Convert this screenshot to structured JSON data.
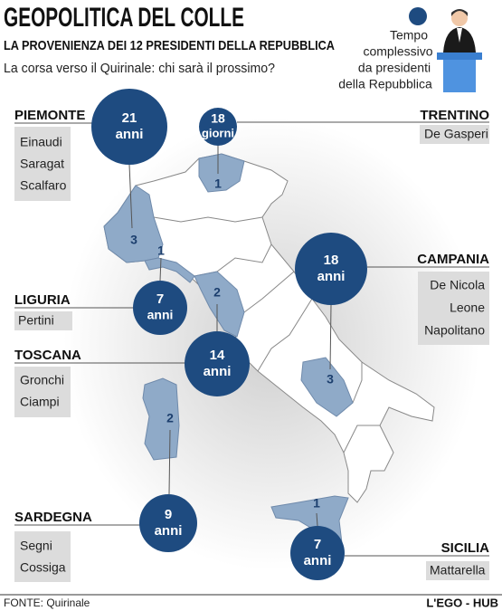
{
  "header": {
    "title": "GEOPOLITICA DEL COLLE",
    "subtitle": "LA PROVENIENZA DEI 12 PRESIDENTI DELLA REPUBBLICA",
    "question": "La corsa verso il Quirinale: chi sarà il prossimo?"
  },
  "legend": {
    "lines": [
      "Tempo",
      "complessivo",
      "da presidenti",
      "della Repubblica"
    ]
  },
  "regions": [
    {
      "name": "PIEMONTE",
      "presidents": [
        "Einaudi",
        "Saragat",
        "Scalfaro"
      ],
      "time": 21,
      "unit": "anni",
      "count": 3
    },
    {
      "name": "TRENTINO",
      "presidents": [
        "De Gasperi"
      ],
      "time": 18,
      "unit": "giorni",
      "count": 1
    },
    {
      "name": "LIGURIA",
      "presidents": [
        "Pertini"
      ],
      "time": 7,
      "unit": "anni",
      "count": 1
    },
    {
      "name": "TOSCANA",
      "presidents": [
        "Gronchi",
        "Ciampi"
      ],
      "time": 14,
      "unit": "anni",
      "count": 2
    },
    {
      "name": "CAMPANIA",
      "presidents": [
        "De Nicola",
        "Leone",
        "Napolitano"
      ],
      "time": 18,
      "unit": "anni",
      "count": 3
    },
    {
      "name": "SARDEGNA",
      "presidents": [
        "Segni",
        "Cossiga"
      ],
      "time": 9,
      "unit": "anni",
      "count": 2
    },
    {
      "name": "SICILIA",
      "presidents": [
        "Mattarella"
      ],
      "time": 7,
      "unit": "anni",
      "count": 1
    }
  ],
  "footer": {
    "source": "FONTE: Quirinale",
    "brand": "L'EGO - HUB"
  }
}
